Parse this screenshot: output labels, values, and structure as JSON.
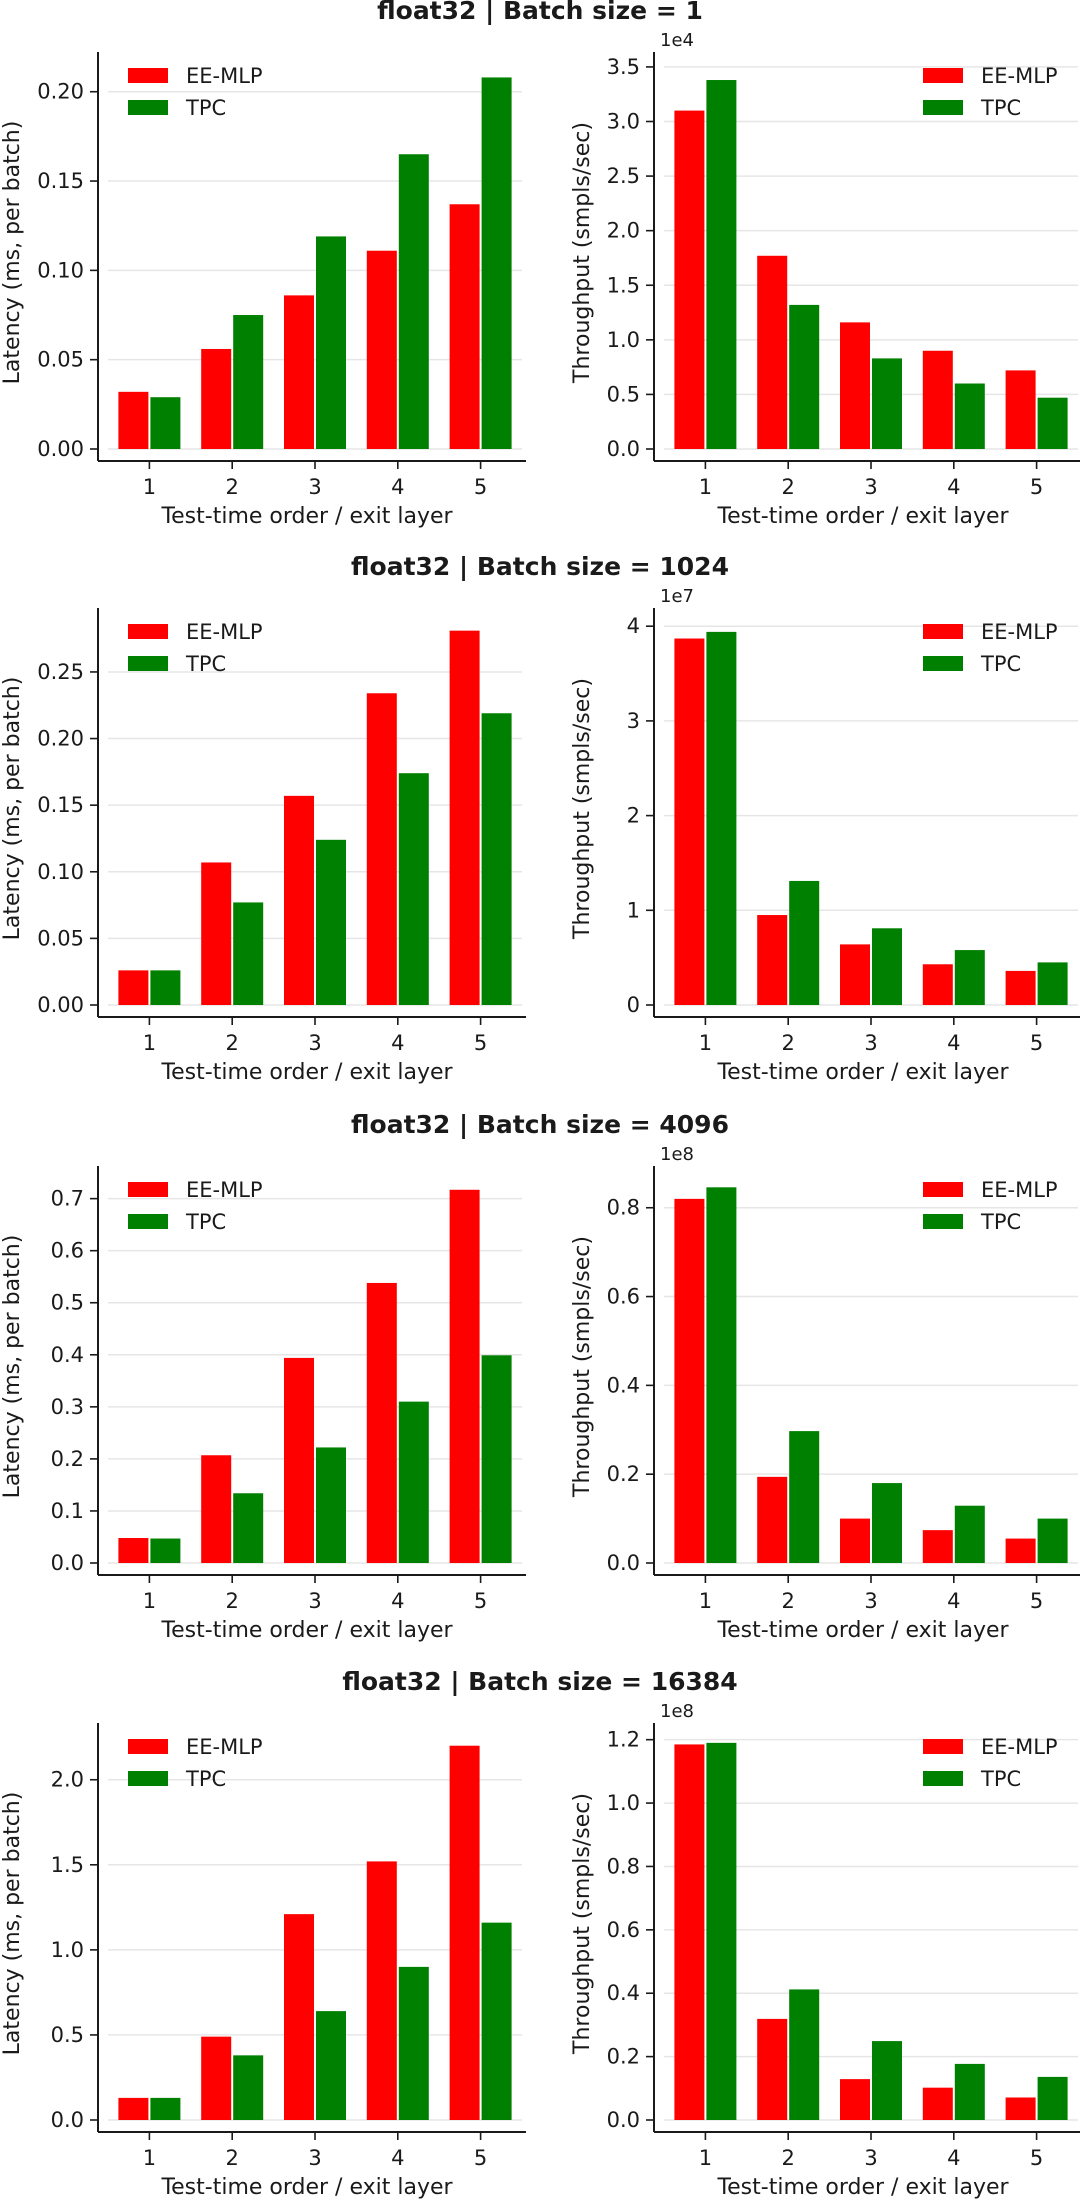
{
  "chart_data": [
    {
      "title": "float32 | Batch size = 1",
      "charts": [
        {
          "type": "bar",
          "categories": [
            "1",
            "2",
            "3",
            "4",
            "5"
          ],
          "series": [
            {
              "name": "EE-MLP",
              "color": "#ff0000",
              "values": [
                0.032,
                0.056,
                0.086,
                0.111,
                0.137
              ]
            },
            {
              "name": "TPC",
              "color": "#008000",
              "values": [
                0.029,
                0.075,
                0.119,
                0.165,
                0.208
              ]
            }
          ],
          "xlabel": "Test-time order / exit layer",
          "ylabel": "Latency (ms, per batch)",
          "ylim": [
            0,
            0.22
          ],
          "ticks": [
            0,
            0.05,
            0.1,
            0.15,
            0.2
          ],
          "tick_labels": [
            "0.00",
            "0.05",
            "0.10",
            "0.15",
            "0.20"
          ],
          "multiplier": "",
          "legend": "top-left"
        },
        {
          "type": "bar",
          "categories": [
            "1",
            "2",
            "3",
            "4",
            "5"
          ],
          "series": [
            {
              "name": "EE-MLP",
              "color": "#ff0000",
              "values": [
                3.1,
                1.77,
                1.16,
                0.9,
                0.72
              ]
            },
            {
              "name": "TPC",
              "color": "#008000",
              "values": [
                3.38,
                1.32,
                0.83,
                0.6,
                0.47
              ]
            }
          ],
          "xlabel": "Test-time order / exit layer",
          "ylabel": "Throughput (smpls/sec)",
          "ylim": [
            0,
            3.6
          ],
          "ticks": [
            0,
            0.5,
            1.0,
            1.5,
            2.0,
            2.5,
            3.0,
            3.5
          ],
          "tick_labels": [
            "0.0",
            "0.5",
            "1.0",
            "1.5",
            "2.0",
            "2.5",
            "3.0",
            "3.5"
          ],
          "multiplier": "1e4",
          "legend": "top-right"
        }
      ]
    },
    {
      "title": "float32 | Batch size = 1024",
      "charts": [
        {
          "type": "bar",
          "categories": [
            "1",
            "2",
            "3",
            "4",
            "5"
          ],
          "series": [
            {
              "name": "EE-MLP",
              "color": "#ff0000",
              "values": [
                0.026,
                0.107,
                0.157,
                0.234,
                0.281
              ]
            },
            {
              "name": "TPC",
              "color": "#008000",
              "values": [
                0.026,
                0.077,
                0.124,
                0.174,
                0.219
              ]
            }
          ],
          "xlabel": "Test-time order / exit layer",
          "ylabel": "Latency (ms, per batch)",
          "ylim": [
            0,
            0.295
          ],
          "ticks": [
            0,
            0.05,
            0.1,
            0.15,
            0.2,
            0.25
          ],
          "tick_labels": [
            "0.00",
            "0.05",
            "0.10",
            "0.15",
            "0.20",
            "0.25"
          ],
          "multiplier": "",
          "legend": "top-left"
        },
        {
          "type": "bar",
          "categories": [
            "1",
            "2",
            "3",
            "4",
            "5"
          ],
          "series": [
            {
              "name": "EE-MLP",
              "color": "#ff0000",
              "values": [
                3.87,
                0.95,
                0.64,
                0.43,
                0.36
              ]
            },
            {
              "name": "TPC",
              "color": "#008000",
              "values": [
                3.94,
                1.31,
                0.81,
                0.58,
                0.45
              ]
            }
          ],
          "xlabel": "Test-time order / exit layer",
          "ylabel": "Throughput (smpls/sec)",
          "ylim": [
            0,
            4.15
          ],
          "ticks": [
            0,
            1,
            2,
            3,
            4
          ],
          "tick_labels": [
            "0",
            "1",
            "2",
            "3",
            "4"
          ],
          "multiplier": "1e7",
          "legend": "top-right"
        }
      ]
    },
    {
      "title": "float32 | Batch size = 4096",
      "charts": [
        {
          "type": "bar",
          "categories": [
            "1",
            "2",
            "3",
            "4",
            "5"
          ],
          "series": [
            {
              "name": "EE-MLP",
              "color": "#ff0000",
              "values": [
                0.048,
                0.207,
                0.394,
                0.538,
                0.717
              ]
            },
            {
              "name": "TPC",
              "color": "#008000",
              "values": [
                0.047,
                0.134,
                0.222,
                0.31,
                0.399
              ]
            }
          ],
          "xlabel": "Test-time order / exit layer",
          "ylabel": "Latency (ms, per batch)",
          "ylim": [
            0,
            0.755
          ],
          "ticks": [
            0,
            0.1,
            0.2,
            0.3,
            0.4,
            0.5,
            0.6,
            0.7
          ],
          "tick_labels": [
            "0.0",
            "0.1",
            "0.2",
            "0.3",
            "0.4",
            "0.5",
            "0.6",
            "0.7"
          ],
          "multiplier": "",
          "legend": "top-left"
        },
        {
          "type": "bar",
          "categories": [
            "1",
            "2",
            "3",
            "4",
            "5"
          ],
          "series": [
            {
              "name": "EE-MLP",
              "color": "#ff0000",
              "values": [
                0.82,
                0.194,
                0.1,
                0.074,
                0.055
              ]
            },
            {
              "name": "TPC",
              "color": "#008000",
              "values": [
                0.846,
                0.297,
                0.18,
                0.129,
                0.1
              ]
            }
          ],
          "xlabel": "Test-time order / exit layer",
          "ylabel": "Throughput (smpls/sec)",
          "ylim": [
            0,
            0.885
          ],
          "ticks": [
            0,
            0.2,
            0.4,
            0.6,
            0.8
          ],
          "tick_labels": [
            "0.0",
            "0.2",
            "0.4",
            "0.6",
            "0.8"
          ],
          "multiplier": "1e8",
          "legend": "top-right"
        }
      ]
    },
    {
      "title": "float32 | Batch size = 16384",
      "charts": [
        {
          "type": "bar",
          "categories": [
            "1",
            "2",
            "3",
            "4",
            "5"
          ],
          "series": [
            {
              "name": "EE-MLP",
              "color": "#ff0000",
              "values": [
                0.13,
                0.49,
                1.21,
                1.52,
                2.2
              ]
            },
            {
              "name": "TPC",
              "color": "#008000",
              "values": [
                0.13,
                0.38,
                0.64,
                0.9,
                1.16
              ]
            }
          ],
          "xlabel": "Test-time order / exit layer",
          "ylabel": "Latency (ms, per batch)",
          "ylim": [
            0,
            2.31
          ],
          "ticks": [
            0,
            0.5,
            1.0,
            1.5,
            2.0
          ],
          "tick_labels": [
            "0.0",
            "0.5",
            "1.0",
            "1.5",
            "2.0"
          ],
          "multiplier": "",
          "legend": "top-left"
        },
        {
          "type": "bar",
          "categories": [
            "1",
            "2",
            "3",
            "4",
            "5"
          ],
          "series": [
            {
              "name": "EE-MLP",
              "color": "#ff0000",
              "values": [
                1.185,
                0.319,
                0.129,
                0.102,
                0.071
              ]
            },
            {
              "name": "TPC",
              "color": "#008000",
              "values": [
                1.19,
                0.412,
                0.249,
                0.177,
                0.136
              ]
            }
          ],
          "xlabel": "Test-time order / exit layer",
          "ylabel": "Throughput (smpls/sec)",
          "ylim": [
            0,
            1.24
          ],
          "ticks": [
            0,
            0.2,
            0.4,
            0.6,
            0.8,
            1.0,
            1.2
          ],
          "tick_labels": [
            "0.0",
            "0.2",
            "0.4",
            "0.6",
            "0.8",
            "1.0",
            "1.2"
          ],
          "multiplier": "1e8",
          "legend": "top-right"
        }
      ]
    }
  ]
}
